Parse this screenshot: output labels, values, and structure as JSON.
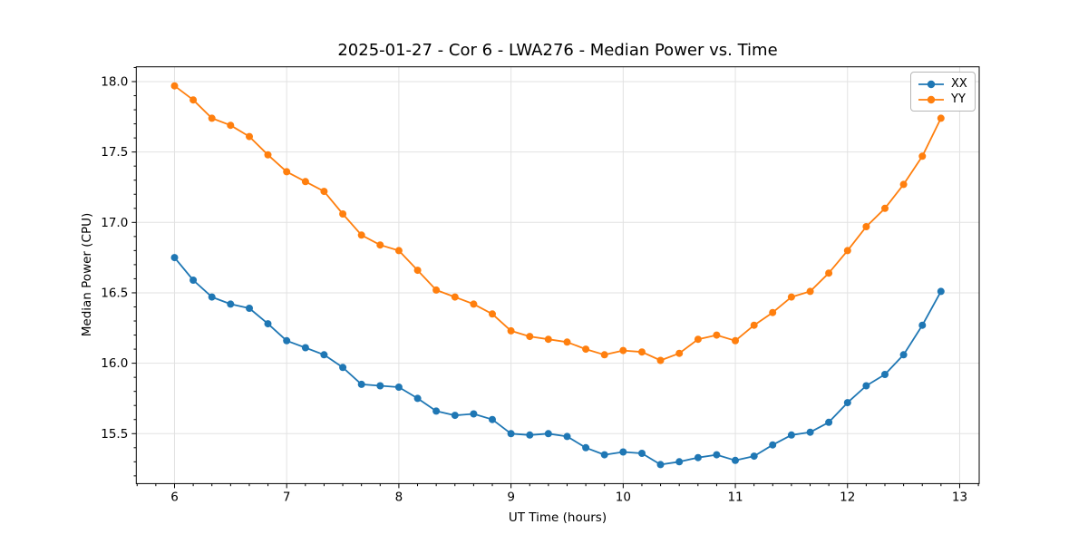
{
  "figure": {
    "title": "2025-01-27 - Cor 6 - LWA276 - Median Power vs. Time"
  },
  "chart_data": {
    "type": "line",
    "title": "2025-01-27 - Cor 6 - LWA276 - Median Power vs. Time",
    "xlabel": "UT Time (hours)",
    "ylabel": "Median Power (CPU)",
    "x": [
      6.0,
      6.167,
      6.333,
      6.5,
      6.667,
      6.833,
      7.0,
      7.167,
      7.333,
      7.5,
      7.667,
      7.833,
      8.0,
      8.167,
      8.333,
      8.5,
      8.667,
      8.833,
      9.0,
      9.167,
      9.333,
      9.5,
      9.667,
      9.833,
      10.0,
      10.167,
      10.333,
      10.5,
      10.667,
      10.833,
      11.0,
      11.167,
      11.333,
      11.5,
      11.667,
      11.833,
      12.0,
      12.167,
      12.333,
      12.5,
      12.667,
      12.833
    ],
    "series": [
      {
        "name": "XX",
        "color": "#1f77b4",
        "values": [
          16.75,
          16.59,
          16.47,
          16.42,
          16.39,
          16.28,
          16.16,
          16.11,
          16.06,
          15.97,
          15.85,
          15.84,
          15.83,
          15.75,
          15.66,
          15.63,
          15.64,
          15.6,
          15.5,
          15.49,
          15.5,
          15.48,
          15.4,
          15.35,
          15.37,
          15.36,
          15.28,
          15.3,
          15.33,
          15.35,
          15.31,
          15.34,
          15.42,
          15.49,
          15.51,
          15.58,
          15.72,
          15.84,
          15.92,
          16.06,
          16.27,
          16.51
        ]
      },
      {
        "name": "YY",
        "color": "#ff7f0e",
        "values": [
          17.97,
          17.87,
          17.74,
          17.69,
          17.61,
          17.48,
          17.36,
          17.29,
          17.22,
          17.06,
          16.91,
          16.84,
          16.8,
          16.66,
          16.52,
          16.47,
          16.42,
          16.35,
          16.23,
          16.19,
          16.17,
          16.15,
          16.1,
          16.06,
          16.09,
          16.08,
          16.02,
          16.07,
          16.17,
          16.2,
          16.16,
          16.27,
          16.36,
          16.47,
          16.51,
          16.64,
          16.8,
          16.97,
          17.1,
          17.27,
          17.47,
          17.74
        ]
      }
    ],
    "xlim": [
      5.659,
      13.174
    ],
    "ylim": [
      15.145,
      18.105
    ],
    "xticks": [
      6,
      7,
      8,
      9,
      10,
      11,
      12,
      13
    ],
    "xtick_labels": [
      "6",
      "7",
      "8",
      "9",
      "10",
      "11",
      "12",
      "13"
    ],
    "yticks": [
      15.5,
      16.0,
      16.5,
      17.0,
      17.5,
      18.0
    ],
    "ytick_labels": [
      "15.5",
      "16.0",
      "16.5",
      "17.0",
      "17.5",
      "18.0"
    ],
    "x_minor_step": 0.1667,
    "y_minor_step": 0.1,
    "grid": true,
    "grid_color": "#e2e2e2",
    "legend_position": "upper right",
    "marker": "o"
  }
}
